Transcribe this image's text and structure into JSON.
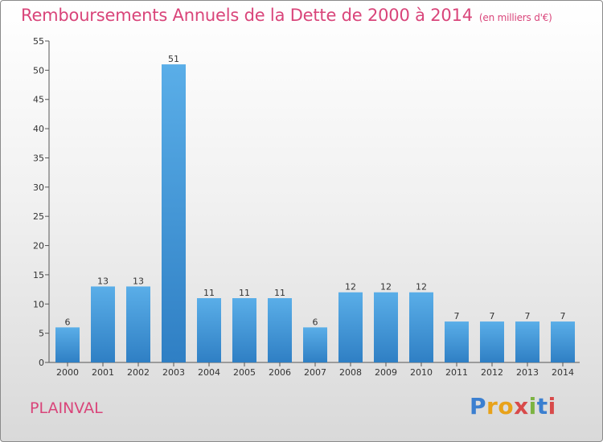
{
  "header": {
    "title": "Remboursements Annuels de la Dette de 2000 à 2014",
    "unit": "(en milliers d'€)"
  },
  "footer": {
    "commune": "PLAINVAL",
    "logo": "Proxiti"
  },
  "colors": {
    "title": "#d9457a",
    "bar_top": "#5aaee8",
    "bar_bottom": "#2f7fc4"
  },
  "chart_data": {
    "type": "bar",
    "title": "Remboursements Annuels de la Dette de 2000 à 2014",
    "categories": [
      "2000",
      "2001",
      "2002",
      "2003",
      "2004",
      "2005",
      "2006",
      "2007",
      "2008",
      "2009",
      "2010",
      "2011",
      "2012",
      "2013",
      "2014"
    ],
    "values": [
      6,
      13,
      13,
      51,
      11,
      11,
      11,
      6,
      12,
      12,
      12,
      7,
      7,
      7,
      7
    ],
    "ylim": [
      0,
      55
    ],
    "yticks": [
      0,
      5,
      10,
      15,
      20,
      25,
      30,
      35,
      40,
      45,
      50,
      55
    ],
    "grid": false,
    "legend": "none"
  }
}
